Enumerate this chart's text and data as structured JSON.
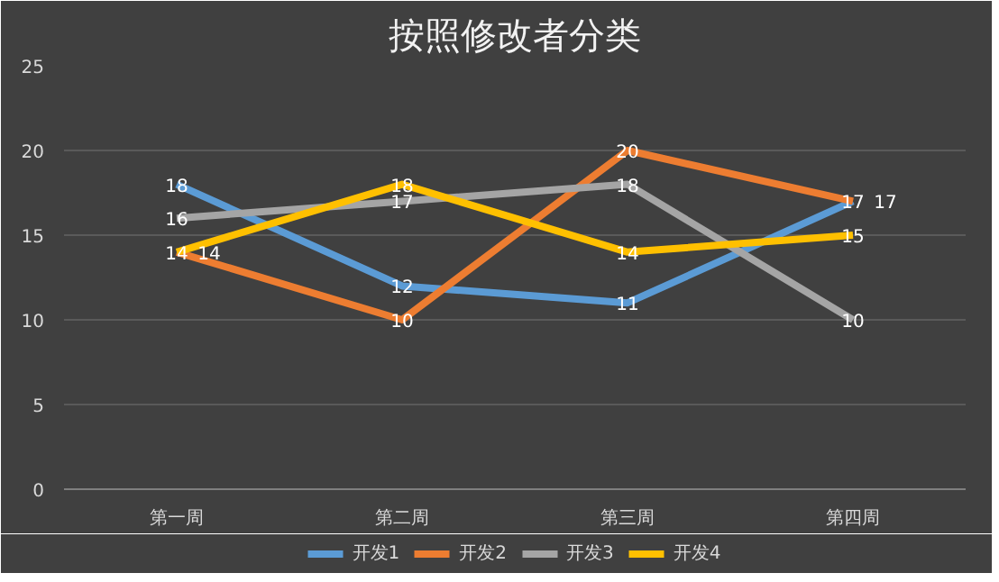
{
  "chart_data": {
    "type": "line",
    "title": "按照修改者分类",
    "categories": [
      "第一周",
      "第二周",
      "第三周",
      "第四周"
    ],
    "series": [
      {
        "name": "开发1",
        "color": "#5b9bd5",
        "values": [
          18,
          12,
          11,
          17
        ]
      },
      {
        "name": "开发2",
        "color": "#ed7d31",
        "values": [
          14,
          10,
          20,
          17
        ]
      },
      {
        "name": "开发3",
        "color": "#a5a5a5",
        "values": [
          16,
          17,
          18,
          10
        ]
      },
      {
        "name": "开发4",
        "color": "#ffc000",
        "values": [
          14,
          18,
          14,
          15
        ]
      }
    ],
    "ylim": [
      0,
      25
    ],
    "yticks": [
      0,
      5,
      10,
      15,
      20,
      25
    ],
    "grid": "y",
    "legend": "bottom",
    "data_labels": true,
    "line_style": "solid"
  }
}
